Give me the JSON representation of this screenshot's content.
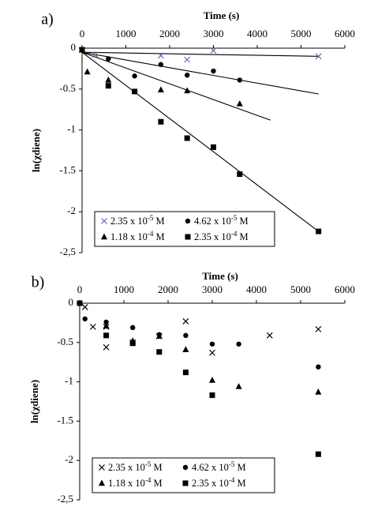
{
  "chart_data": [
    {
      "panel_label": "a)",
      "type": "scatter",
      "xlabel": "Time (s)",
      "ylabel": "ln(χdiene)",
      "xlim": [
        0,
        6000
      ],
      "ylim": [
        -2.5,
        0
      ],
      "x_ticks": [
        "0",
        "1000",
        "2000",
        "3000",
        "4000",
        "5000",
        "6000"
      ],
      "y_ticks": [
        "0",
        "-0.5",
        "-1",
        "-1.5",
        "-2",
        "-2,5"
      ],
      "legend_position": "bottom-center",
      "series": [
        {
          "name": "2.35 x 10-5 M",
          "name_base": "2.35 x 10",
          "name_exp": "-5",
          "name_unit": " M",
          "marker": "x-purple",
          "points": [
            [
              0,
              -0.02
            ],
            [
              300,
              -0.08
            ],
            [
              1800,
              -0.09
            ],
            [
              2400,
              -0.14
            ],
            [
              3000,
              -0.03
            ],
            [
              5400,
              -0.1
            ]
          ],
          "fit": [
            [
              0,
              -0.05
            ],
            [
              5400,
              -0.1
            ]
          ]
        },
        {
          "name": "4.62 x 10-5 M",
          "name_base": "4.62 x 10",
          "name_exp": "-5",
          "name_unit": " M",
          "marker": "circle",
          "points": [
            [
              0,
              -0.02
            ],
            [
              600,
              -0.13
            ],
            [
              1200,
              -0.34
            ],
            [
              1800,
              -0.2
            ],
            [
              2400,
              -0.33
            ],
            [
              3000,
              -0.28
            ],
            [
              3600,
              -0.39
            ]
          ],
          "fit": [
            [
              0,
              -0.05
            ],
            [
              5400,
              -0.56
            ]
          ]
        },
        {
          "name": "1.18 x 10-4 M",
          "name_base": "1.18 x 10",
          "name_exp": "-4",
          "name_unit": " M",
          "marker": "triangle",
          "points": [
            [
              0,
              -0.02
            ],
            [
              120,
              -0.29
            ],
            [
              600,
              -0.39
            ],
            [
              1800,
              -0.51
            ],
            [
              2400,
              -0.52
            ],
            [
              3600,
              -0.68
            ]
          ],
          "fit": [
            [
              0,
              -0.05
            ],
            [
              4300,
              -0.88
            ]
          ]
        },
        {
          "name": "2.35 x 10-4 M",
          "name_base": "2.35 x 10",
          "name_exp": "-4",
          "name_unit": " M",
          "marker": "square",
          "points": [
            [
              0,
              -0.02
            ],
            [
              600,
              -0.46
            ],
            [
              1200,
              -0.53
            ],
            [
              1800,
              -0.9
            ],
            [
              2400,
              -1.1
            ],
            [
              3000,
              -1.21
            ],
            [
              3600,
              -1.54
            ],
            [
              5400,
              -2.24
            ]
          ],
          "fit": [
            [
              0,
              -0.05
            ],
            [
              5400,
              -2.24
            ]
          ]
        }
      ]
    },
    {
      "panel_label": "b)",
      "type": "scatter",
      "xlabel": "Time (s)",
      "ylabel": "ln(χdiene)",
      "xlim": [
        0,
        6000
      ],
      "ylim": [
        -2.5,
        0
      ],
      "x_ticks": [
        "0",
        "1000",
        "2000",
        "3000",
        "4000",
        "5000",
        "6000"
      ],
      "y_ticks": [
        "0",
        "-0.5",
        "-1",
        "-1.5",
        "-2",
        "-2,5"
      ],
      "legend_position": "bottom-center",
      "series": [
        {
          "name": "2.35 x 10-5 M",
          "name_base": "2.35 x 10",
          "name_exp": "-5",
          "name_unit": " M",
          "marker": "x",
          "points": [
            [
              120,
              -0.05
            ],
            [
              300,
              -0.3
            ],
            [
              600,
              -0.56
            ],
            [
              600,
              -0.3
            ],
            [
              1200,
              -0.5
            ],
            [
              1800,
              -0.42
            ],
            [
              2400,
              -0.23
            ],
            [
              3000,
              -0.63
            ],
            [
              4300,
              -0.41
            ],
            [
              5400,
              -0.33
            ]
          ]
        },
        {
          "name": "4.62 x 10-5 M",
          "name_base": "4.62 x 10",
          "name_exp": "-5",
          "name_unit": " M",
          "marker": "circle",
          "points": [
            [
              120,
              -0.2
            ],
            [
              600,
              -0.24
            ],
            [
              1200,
              -0.31
            ],
            [
              1800,
              -0.4
            ],
            [
              2400,
              -0.41
            ],
            [
              3000,
              -0.52
            ],
            [
              3600,
              -0.52
            ],
            [
              5400,
              -0.81
            ]
          ]
        },
        {
          "name": "1.18 x 10-4 M",
          "name_base": "1.18 x 10",
          "name_exp": "-4",
          "name_unit": " M",
          "marker": "triangle",
          "points": [
            [
              600,
              -0.29
            ],
            [
              1200,
              -0.48
            ],
            [
              1800,
              -0.42
            ],
            [
              2400,
              -0.59
            ],
            [
              3000,
              -0.98
            ],
            [
              3600,
              -1.06
            ],
            [
              5400,
              -1.13
            ]
          ]
        },
        {
          "name": "2.35 x 10-4 M",
          "name_base": "2.35 x 10",
          "name_exp": "-4",
          "name_unit": " M",
          "marker": "square",
          "points": [
            [
              0,
              0
            ],
            [
              600,
              -0.41
            ],
            [
              1200,
              -0.51
            ],
            [
              1800,
              -0.62
            ],
            [
              2400,
              -0.88
            ],
            [
              3000,
              -1.17
            ],
            [
              5400,
              -1.92
            ]
          ]
        }
      ]
    }
  ]
}
